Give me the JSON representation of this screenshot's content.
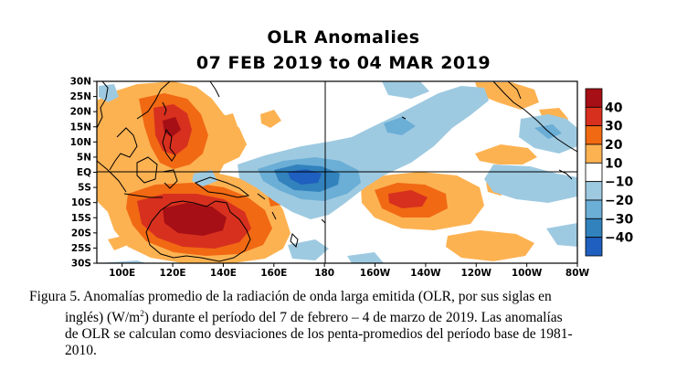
{
  "figure": {
    "title_line1": "OLR Anomalies",
    "title_line2": "07 FEB 2019 to 04 MAR 2019",
    "lat_labels": [
      "30N",
      "25N",
      "20N",
      "15N",
      "10N",
      "5N",
      "EQ",
      "5S",
      "10S",
      "15S",
      "20S",
      "25S",
      "30S"
    ],
    "lon_labels": [
      "100E",
      "120E",
      "140E",
      "160E",
      "180",
      "160W",
      "140W",
      "120W",
      "100W",
      "80W"
    ],
    "colorbar": {
      "labels": [
        "40",
        "30",
        "20",
        "10",
        "−10",
        "−20",
        "−30",
        "−40"
      ],
      "colors": [
        "#a50f15",
        "#d7301f",
        "#f16913",
        "#fdb252",
        "#ffffff",
        "#9ecae1",
        "#6baed6",
        "#3182bd",
        "#1f5fbf"
      ]
    },
    "colors": {
      "positive_1": "#fdb252",
      "positive_2": "#f16913",
      "positive_3": "#d7301f",
      "positive_4": "#a50f15",
      "negative_1": "#9ecae1",
      "negative_2": "#6baed6",
      "negative_3": "#3182bd",
      "negative_4": "#1f5fbf"
    }
  },
  "caption": {
    "line1": "Figura 5. Anomalías promedio de la radiación de onda larga emitida (OLR, por sus siglas en",
    "line2_pre": "inglés) (W/m",
    "line2_sup": "2",
    "line2_post": ") durante el período del 7 de febrero – 4 de marzo de 2019.  Las anomalías",
    "line3": "de OLR se calculan como desviaciones de los penta-promedios del período base de 1981-",
    "line4": "2010."
  }
}
